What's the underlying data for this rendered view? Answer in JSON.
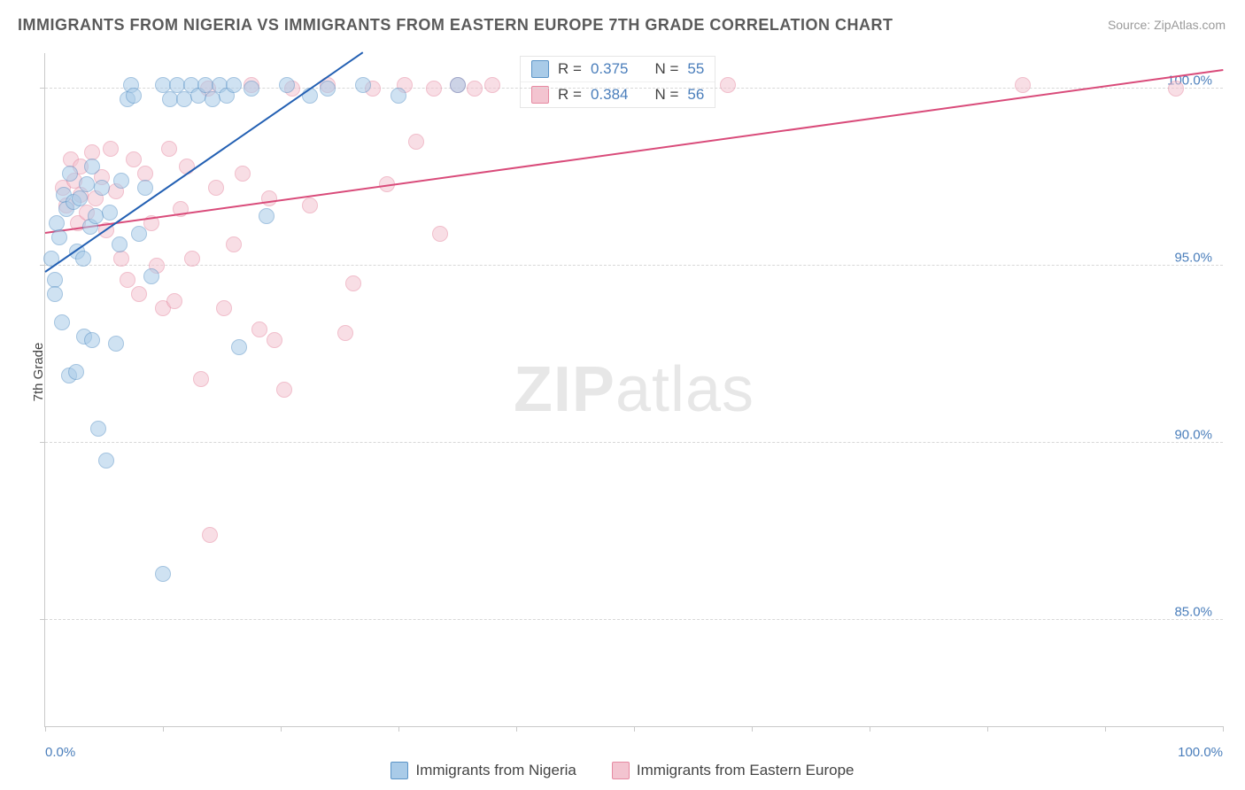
{
  "title": "IMMIGRANTS FROM NIGERIA VS IMMIGRANTS FROM EASTERN EUROPE 7TH GRADE CORRELATION CHART",
  "source": "Source: ZipAtlas.com",
  "watermark_bold": "ZIP",
  "watermark_light": "atlas",
  "y_axis_label": "7th Grade",
  "chart": {
    "type": "scatter",
    "xlim": [
      0,
      100
    ],
    "ylim": [
      82,
      101
    ],
    "x_ticks": [
      0,
      10,
      20,
      30,
      40,
      50,
      60,
      70,
      80,
      90,
      100
    ],
    "y_gridlines": [
      85,
      90,
      95,
      100
    ],
    "y_tick_labels": [
      "85.0%",
      "90.0%",
      "95.0%",
      "100.0%"
    ],
    "x_tick_left": "0.0%",
    "x_tick_right": "100.0%",
    "background_color": "#ffffff",
    "grid_color": "#d8d8d8",
    "axis_color": "#c9c9c9",
    "marker_radius": 8,
    "marker_opacity": 0.55
  },
  "series": {
    "nigeria": {
      "label": "Immigrants from Nigeria",
      "fill": "#a9cbe8",
      "stroke": "#5b94c7",
      "line_color": "#2360b3",
      "R_label": "R = ",
      "R": "0.375",
      "N_label": "N = ",
      "N": "55",
      "trend": {
        "x1": 0,
        "y1": 94.8,
        "x2": 27,
        "y2": 101
      },
      "points": [
        [
          0.5,
          95.2
        ],
        [
          0.8,
          94.6
        ],
        [
          0.8,
          94.2
        ],
        [
          1.0,
          96.2
        ],
        [
          1.2,
          95.8
        ],
        [
          1.4,
          93.4
        ],
        [
          1.6,
          97.0
        ],
        [
          1.8,
          96.6
        ],
        [
          2.0,
          91.9
        ],
        [
          2.1,
          97.6
        ],
        [
          2.4,
          96.8
        ],
        [
          2.6,
          92.0
        ],
        [
          2.7,
          95.4
        ],
        [
          2.9,
          96.9
        ],
        [
          3.2,
          95.2
        ],
        [
          3.3,
          93.0
        ],
        [
          3.5,
          97.3
        ],
        [
          3.8,
          96.1
        ],
        [
          4.0,
          92.9
        ],
        [
          4.0,
          97.8
        ],
        [
          4.3,
          96.4
        ],
        [
          4.5,
          90.4
        ],
        [
          4.8,
          97.2
        ],
        [
          5.2,
          89.5
        ],
        [
          5.5,
          96.5
        ],
        [
          6.0,
          92.8
        ],
        [
          6.3,
          95.6
        ],
        [
          6.5,
          97.4
        ],
        [
          7.0,
          99.7
        ],
        [
          7.3,
          100.1
        ],
        [
          7.5,
          99.8
        ],
        [
          8.0,
          95.9
        ],
        [
          8.5,
          97.2
        ],
        [
          9.0,
          94.7
        ],
        [
          10.0,
          86.3
        ],
        [
          10.0,
          100.1
        ],
        [
          10.6,
          99.7
        ],
        [
          11.2,
          100.1
        ],
        [
          11.8,
          99.7
        ],
        [
          12.4,
          100.1
        ],
        [
          13.0,
          99.8
        ],
        [
          13.6,
          100.1
        ],
        [
          14.2,
          99.7
        ],
        [
          14.8,
          100.1
        ],
        [
          15.4,
          99.8
        ],
        [
          16.0,
          100.1
        ],
        [
          16.5,
          92.7
        ],
        [
          17.5,
          100.0
        ],
        [
          18.8,
          96.4
        ],
        [
          20.5,
          100.1
        ],
        [
          22.5,
          99.8
        ],
        [
          24.0,
          100.0
        ],
        [
          27.0,
          100.1
        ],
        [
          30.0,
          99.8
        ],
        [
          35.0,
          100.1
        ]
      ]
    },
    "eastern_europe": {
      "label": "Immigrants from Eastern Europe",
      "fill": "#f3c4d0",
      "stroke": "#e68aa2",
      "line_color": "#d94b7a",
      "R_label": "R = ",
      "R": "0.384",
      "N_label": "N = ",
      "N": "56",
      "trend": {
        "x1": 0,
        "y1": 95.9,
        "x2": 100,
        "y2": 100.5
      },
      "points": [
        [
          1.5,
          97.2
        ],
        [
          1.8,
          96.7
        ],
        [
          2.2,
          98.0
        ],
        [
          2.5,
          97.4
        ],
        [
          2.8,
          96.2
        ],
        [
          3.0,
          97.8
        ],
        [
          3.0,
          97.0
        ],
        [
          3.5,
          96.5
        ],
        [
          4.0,
          98.2
        ],
        [
          4.3,
          96.9
        ],
        [
          4.8,
          97.5
        ],
        [
          5.2,
          96.0
        ],
        [
          5.6,
          98.3
        ],
        [
          6.0,
          97.1
        ],
        [
          6.5,
          95.2
        ],
        [
          7.0,
          94.6
        ],
        [
          7.5,
          98.0
        ],
        [
          8.0,
          94.2
        ],
        [
          8.5,
          97.6
        ],
        [
          9.0,
          96.2
        ],
        [
          9.5,
          95.0
        ],
        [
          10.0,
          93.8
        ],
        [
          10.5,
          98.3
        ],
        [
          11.0,
          94.0
        ],
        [
          11.5,
          96.6
        ],
        [
          12.0,
          97.8
        ],
        [
          12.5,
          95.2
        ],
        [
          13.2,
          91.8
        ],
        [
          13.8,
          100.0
        ],
        [
          14.5,
          97.2
        ],
        [
          15.2,
          93.8
        ],
        [
          16.0,
          95.6
        ],
        [
          16.8,
          97.6
        ],
        [
          17.5,
          100.1
        ],
        [
          18.2,
          93.2
        ],
        [
          19.0,
          96.9
        ],
        [
          19.5,
          92.9
        ],
        [
          20.3,
          91.5
        ],
        [
          21.0,
          100.0
        ],
        [
          14.0,
          87.4
        ],
        [
          22.5,
          96.7
        ],
        [
          24.0,
          100.1
        ],
        [
          25.5,
          93.1
        ],
        [
          26.2,
          94.5
        ],
        [
          27.8,
          100.0
        ],
        [
          29.0,
          97.3
        ],
        [
          30.5,
          100.1
        ],
        [
          31.5,
          98.5
        ],
        [
          33.0,
          100.0
        ],
        [
          33.5,
          95.9
        ],
        [
          35.0,
          100.1
        ],
        [
          36.5,
          100.0
        ],
        [
          38.0,
          100.1
        ],
        [
          83.0,
          100.1
        ],
        [
          96.0,
          100.0
        ],
        [
          58.0,
          100.1
        ]
      ]
    }
  }
}
